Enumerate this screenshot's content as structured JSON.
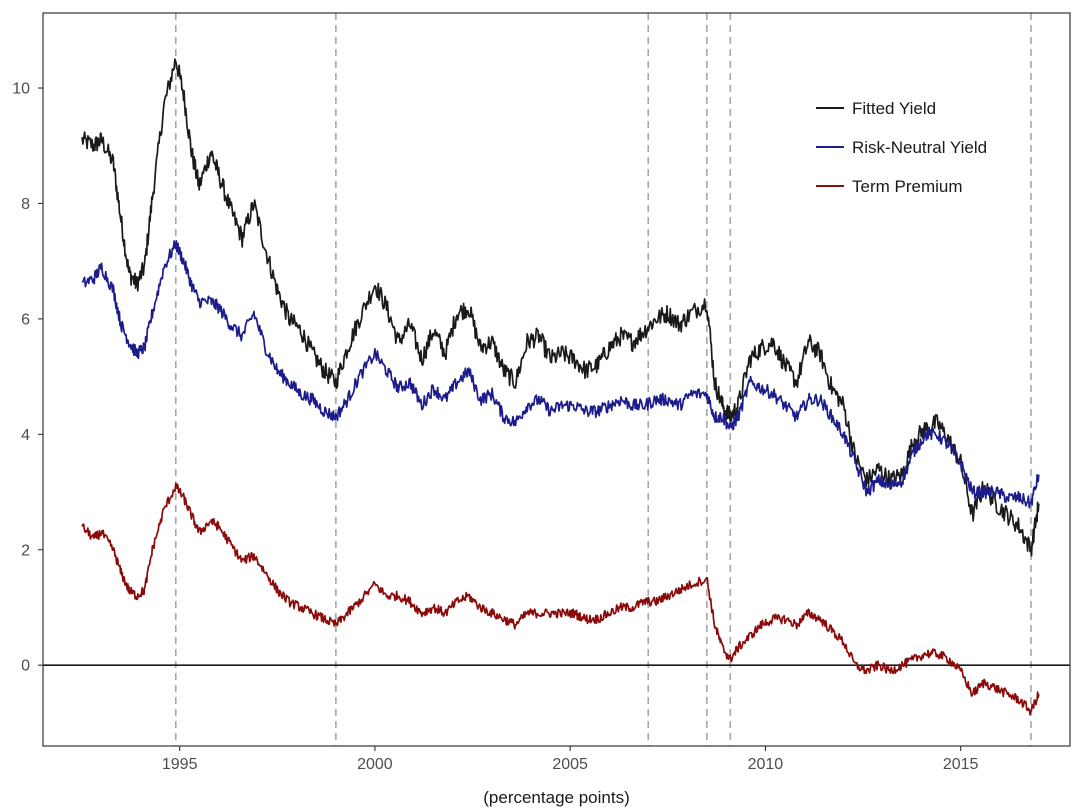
{
  "chart_data": {
    "type": "line",
    "title": "",
    "xlabel": "(percentage points)",
    "ylabel": "",
    "xlim": [
      1991.5,
      2017.8
    ],
    "ylim": [
      -1.4,
      11.3
    ],
    "x_ticks": [
      1995,
      2000,
      2005,
      2010,
      2015
    ],
    "y_ticks": [
      0,
      2,
      4,
      6,
      8,
      10
    ],
    "grid": false,
    "legend": {
      "position": "top-right"
    },
    "vertical_lines": [
      1994.9,
      1999.0,
      2007.0,
      2008.5,
      2009.1,
      2016.8
    ],
    "horizontal_lines": [
      0
    ],
    "series": [
      {
        "name": "Fitted Yield",
        "color": "#1a1a1a",
        "x": [
          1992.5,
          1992.8,
          1993.0,
          1993.3,
          1993.5,
          1993.7,
          1993.9,
          1994.1,
          1994.3,
          1994.6,
          1994.9,
          1995.1,
          1995.3,
          1995.5,
          1995.8,
          1996.0,
          1996.3,
          1996.6,
          1996.9,
          1997.2,
          1997.5,
          1997.8,
          1998.1,
          1998.4,
          1998.7,
          1999.0,
          1999.3,
          1999.6,
          2000.0,
          2000.3,
          2000.6,
          2000.9,
          2001.2,
          2001.5,
          2001.8,
          2002.1,
          2002.4,
          2002.7,
          2003.0,
          2003.3,
          2003.6,
          2003.9,
          2004.2,
          2004.5,
          2004.8,
          2005.1,
          2005.4,
          2005.7,
          2006.0,
          2006.3,
          2006.6,
          2006.9,
          2007.2,
          2007.5,
          2007.8,
          2008.1,
          2008.5,
          2008.7,
          2008.9,
          2009.1,
          2009.3,
          2009.6,
          2009.9,
          2010.2,
          2010.5,
          2010.8,
          2011.1,
          2011.4,
          2011.7,
          2012.0,
          2012.3,
          2012.6,
          2012.9,
          2013.2,
          2013.5,
          2013.8,
          2014.1,
          2014.4,
          2014.7,
          2015.0,
          2015.3,
          2015.6,
          2015.9,
          2016.2,
          2016.5,
          2016.8,
          2017.0
        ],
        "values": [
          9.1,
          9.0,
          9.1,
          8.7,
          7.7,
          6.8,
          6.6,
          6.9,
          8.1,
          9.7,
          10.5,
          9.9,
          8.9,
          8.3,
          8.9,
          8.5,
          7.9,
          7.4,
          8.0,
          7.2,
          6.5,
          6.0,
          5.8,
          5.4,
          5.1,
          4.9,
          5.5,
          6.0,
          6.6,
          6.2,
          5.6,
          5.9,
          5.3,
          5.8,
          5.4,
          6.1,
          6.2,
          5.5,
          5.6,
          5.1,
          4.9,
          5.6,
          5.7,
          5.3,
          5.4,
          5.3,
          5.1,
          5.2,
          5.5,
          5.7,
          5.6,
          5.8,
          6.0,
          6.1,
          5.9,
          6.1,
          6.3,
          4.9,
          4.5,
          4.3,
          4.5,
          5.3,
          5.5,
          5.6,
          5.2,
          4.9,
          5.6,
          5.4,
          4.8,
          4.5,
          3.6,
          3.2,
          3.4,
          3.2,
          3.3,
          3.9,
          4.1,
          4.2,
          3.9,
          3.5,
          2.6,
          3.1,
          2.8,
          2.6,
          2.4,
          2.0,
          2.8
        ]
      },
      {
        "name": "Risk-Neutral Yield",
        "color": "#1c1c8c",
        "x": [
          1992.5,
          1992.8,
          1993.0,
          1993.3,
          1993.5,
          1993.7,
          1993.9,
          1994.1,
          1994.3,
          1994.6,
          1994.9,
          1995.1,
          1995.3,
          1995.5,
          1995.8,
          1996.0,
          1996.3,
          1996.6,
          1996.9,
          1997.2,
          1997.5,
          1997.8,
          1998.1,
          1998.4,
          1998.7,
          1999.0,
          1999.3,
          1999.6,
          2000.0,
          2000.3,
          2000.6,
          2000.9,
          2001.2,
          2001.5,
          2001.8,
          2002.1,
          2002.4,
          2002.7,
          2003.0,
          2003.3,
          2003.6,
          2003.9,
          2004.2,
          2004.5,
          2004.8,
          2005.1,
          2005.4,
          2005.7,
          2006.0,
          2006.3,
          2006.6,
          2006.9,
          2007.2,
          2007.5,
          2007.8,
          2008.1,
          2008.5,
          2008.7,
          2008.9,
          2009.1,
          2009.3,
          2009.6,
          2009.9,
          2010.2,
          2010.5,
          2010.8,
          2011.1,
          2011.4,
          2011.7,
          2012.0,
          2012.3,
          2012.6,
          2012.9,
          2013.2,
          2013.5,
          2013.8,
          2014.1,
          2014.4,
          2014.7,
          2015.0,
          2015.3,
          2015.6,
          2015.9,
          2016.2,
          2016.5,
          2016.8,
          2017.0
        ],
        "values": [
          6.6,
          6.7,
          6.9,
          6.5,
          5.9,
          5.6,
          5.4,
          5.5,
          6.1,
          6.9,
          7.3,
          7.0,
          6.6,
          6.3,
          6.3,
          6.2,
          5.9,
          5.7,
          6.1,
          5.5,
          5.1,
          4.9,
          4.7,
          4.6,
          4.4,
          4.3,
          4.6,
          5.0,
          5.4,
          5.1,
          4.8,
          4.9,
          4.5,
          4.8,
          4.6,
          4.9,
          5.1,
          4.6,
          4.7,
          4.3,
          4.2,
          4.5,
          4.6,
          4.4,
          4.5,
          4.5,
          4.4,
          4.4,
          4.5,
          4.6,
          4.5,
          4.5,
          4.6,
          4.6,
          4.5,
          4.7,
          4.7,
          4.3,
          4.3,
          4.1,
          4.3,
          4.9,
          4.8,
          4.7,
          4.5,
          4.3,
          4.6,
          4.6,
          4.3,
          4.0,
          3.5,
          3.0,
          3.2,
          3.1,
          3.2,
          3.7,
          4.0,
          4.0,
          3.8,
          3.5,
          3.0,
          3.0,
          3.0,
          2.9,
          2.9,
          2.8,
          3.3
        ]
      },
      {
        "name": "Term Premium",
        "color": "#8b0a0a",
        "x": [
          1992.5,
          1992.8,
          1993.0,
          1993.3,
          1993.5,
          1993.7,
          1993.9,
          1994.1,
          1994.3,
          1994.6,
          1994.9,
          1995.1,
          1995.3,
          1995.5,
          1995.8,
          1996.0,
          1996.3,
          1996.6,
          1996.9,
          1997.2,
          1997.5,
          1997.8,
          1998.1,
          1998.4,
          1998.7,
          1999.0,
          1999.3,
          1999.6,
          2000.0,
          2000.3,
          2000.6,
          2000.9,
          2001.2,
          2001.5,
          2001.8,
          2002.1,
          2002.4,
          2002.7,
          2003.0,
          2003.3,
          2003.6,
          2003.9,
          2004.2,
          2004.5,
          2004.8,
          2005.1,
          2005.4,
          2005.7,
          2006.0,
          2006.3,
          2006.6,
          2006.9,
          2007.2,
          2007.5,
          2007.8,
          2008.1,
          2008.5,
          2008.7,
          2008.9,
          2009.1,
          2009.3,
          2009.6,
          2009.9,
          2010.2,
          2010.5,
          2010.8,
          2011.1,
          2011.4,
          2011.7,
          2012.0,
          2012.3,
          2012.6,
          2012.9,
          2013.2,
          2013.5,
          2013.8,
          2014.1,
          2014.4,
          2014.7,
          2015.0,
          2015.3,
          2015.6,
          2015.9,
          2016.2,
          2016.5,
          2016.8,
          2017.0
        ],
        "values": [
          2.4,
          2.2,
          2.3,
          2.0,
          1.6,
          1.3,
          1.2,
          1.3,
          2.0,
          2.7,
          3.1,
          2.9,
          2.6,
          2.3,
          2.5,
          2.4,
          2.1,
          1.8,
          1.9,
          1.6,
          1.3,
          1.1,
          1.0,
          0.9,
          0.8,
          0.7,
          0.9,
          1.1,
          1.4,
          1.2,
          1.2,
          1.1,
          0.9,
          1.0,
          0.9,
          1.1,
          1.2,
          1.0,
          0.9,
          0.8,
          0.7,
          0.9,
          0.9,
          0.9,
          0.9,
          0.9,
          0.8,
          0.8,
          0.9,
          1.0,
          1.0,
          1.1,
          1.1,
          1.2,
          1.3,
          1.4,
          1.5,
          0.7,
          0.3,
          0.1,
          0.3,
          0.5,
          0.7,
          0.8,
          0.8,
          0.7,
          0.9,
          0.8,
          0.6,
          0.4,
          0.0,
          -0.1,
          0.0,
          -0.1,
          0.0,
          0.1,
          0.2,
          0.2,
          0.1,
          -0.1,
          -0.5,
          -0.3,
          -0.4,
          -0.5,
          -0.6,
          -0.8,
          -0.5
        ]
      }
    ]
  }
}
